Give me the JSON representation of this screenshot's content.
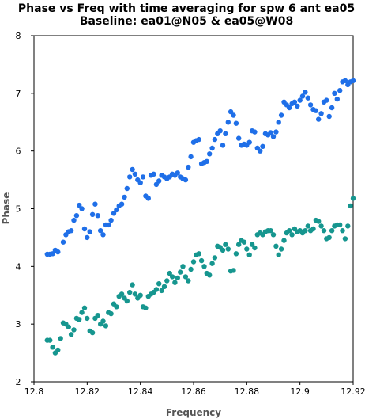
{
  "chart_data": {
    "type": "scatter",
    "title": "Phase vs Freq with time averaging for spw 6 ant ea05",
    "subtitle": "Baseline: ea01@N05 & ea05@W08",
    "xlabel": "Frequency",
    "ylabel": "Phase",
    "xlim": [
      12.8,
      12.92
    ],
    "ylim": [
      2,
      8
    ],
    "x_ticks": [
      "12.8",
      "12.82",
      "12.84",
      "12.86",
      "12.88",
      "12.9",
      "12.92"
    ],
    "y_ticks": [
      "2",
      "3",
      "4",
      "5",
      "6",
      "7",
      "8"
    ],
    "grid": false,
    "legend": "none",
    "series": [
      {
        "color": "#1f6fe8",
        "points": [
          [
            12.805,
            4.21
          ],
          [
            12.806,
            4.21
          ],
          [
            12.807,
            4.22
          ],
          [
            12.808,
            4.28
          ],
          [
            12.809,
            4.25
          ],
          [
            12.811,
            4.42
          ],
          [
            12.812,
            4.55
          ],
          [
            12.813,
            4.6
          ],
          [
            12.814,
            4.62
          ],
          [
            12.815,
            4.8
          ],
          [
            12.816,
            4.88
          ],
          [
            12.817,
            5.06
          ],
          [
            12.818,
            5.0
          ],
          [
            12.819,
            4.65
          ],
          [
            12.82,
            4.5
          ],
          [
            12.821,
            4.6
          ],
          [
            12.822,
            4.9
          ],
          [
            12.823,
            5.08
          ],
          [
            12.824,
            4.88
          ],
          [
            12.825,
            4.62
          ],
          [
            12.826,
            4.55
          ],
          [
            12.827,
            4.72
          ],
          [
            12.828,
            4.72
          ],
          [
            12.829,
            4.8
          ],
          [
            12.83,
            4.92
          ],
          [
            12.831,
            4.98
          ],
          [
            12.832,
            5.05
          ],
          [
            12.833,
            5.08
          ],
          [
            12.834,
            5.2
          ],
          [
            12.835,
            5.35
          ],
          [
            12.836,
            5.55
          ],
          [
            12.837,
            5.68
          ],
          [
            12.838,
            5.6
          ],
          [
            12.839,
            5.5
          ],
          [
            12.84,
            5.45
          ],
          [
            12.841,
            5.55
          ],
          [
            12.842,
            5.22
          ],
          [
            12.843,
            5.18
          ],
          [
            12.844,
            5.58
          ],
          [
            12.845,
            5.6
          ],
          [
            12.846,
            5.42
          ],
          [
            12.847,
            5.48
          ],
          [
            12.848,
            5.58
          ],
          [
            12.849,
            5.55
          ],
          [
            12.85,
            5.52
          ],
          [
            12.851,
            5.55
          ],
          [
            12.852,
            5.6
          ],
          [
            12.853,
            5.58
          ],
          [
            12.854,
            5.62
          ],
          [
            12.855,
            5.55
          ],
          [
            12.856,
            5.52
          ],
          [
            12.857,
            5.5
          ],
          [
            12.858,
            5.72
          ],
          [
            12.859,
            5.9
          ],
          [
            12.86,
            6.15
          ],
          [
            12.861,
            6.18
          ],
          [
            12.862,
            6.2
          ],
          [
            12.863,
            5.78
          ],
          [
            12.864,
            5.8
          ],
          [
            12.865,
            5.82
          ],
          [
            12.866,
            5.95
          ],
          [
            12.867,
            6.05
          ],
          [
            12.868,
            6.2
          ],
          [
            12.869,
            6.3
          ],
          [
            12.87,
            6.35
          ],
          [
            12.871,
            6.1
          ],
          [
            12.872,
            6.3
          ],
          [
            12.873,
            6.5
          ],
          [
            12.874,
            6.68
          ],
          [
            12.875,
            6.62
          ],
          [
            12.876,
            6.48
          ],
          [
            12.877,
            6.22
          ],
          [
            12.878,
            6.1
          ],
          [
            12.879,
            6.12
          ],
          [
            12.88,
            6.1
          ],
          [
            12.881,
            6.15
          ],
          [
            12.882,
            6.35
          ],
          [
            12.883,
            6.33
          ],
          [
            12.884,
            6.05
          ],
          [
            12.885,
            6.0
          ],
          [
            12.886,
            6.08
          ],
          [
            12.887,
            6.3
          ],
          [
            12.888,
            6.28
          ],
          [
            12.889,
            6.32
          ],
          [
            12.89,
            6.25
          ],
          [
            12.891,
            6.33
          ],
          [
            12.892,
            6.5
          ],
          [
            12.893,
            6.62
          ],
          [
            12.894,
            6.85
          ],
          [
            12.895,
            6.8
          ],
          [
            12.896,
            6.75
          ],
          [
            12.897,
            6.82
          ],
          [
            12.898,
            6.85
          ],
          [
            12.899,
            6.78
          ],
          [
            12.9,
            6.88
          ],
          [
            12.901,
            6.95
          ],
          [
            12.902,
            7.02
          ],
          [
            12.903,
            6.92
          ],
          [
            12.904,
            6.8
          ],
          [
            12.905,
            6.72
          ],
          [
            12.906,
            6.7
          ],
          [
            12.907,
            6.55
          ],
          [
            12.908,
            6.65
          ],
          [
            12.909,
            6.85
          ],
          [
            12.91,
            6.88
          ],
          [
            12.911,
            6.6
          ],
          [
            12.912,
            6.75
          ],
          [
            12.913,
            7.0
          ],
          [
            12.914,
            6.9
          ],
          [
            12.915,
            7.05
          ],
          [
            12.916,
            7.2
          ],
          [
            12.917,
            7.22
          ],
          [
            12.918,
            7.15
          ],
          [
            12.919,
            7.2
          ],
          [
            12.92,
            7.22
          ]
        ]
      },
      {
        "color": "#16968f",
        "points": [
          [
            12.805,
            2.72
          ],
          [
            12.806,
            2.72
          ],
          [
            12.807,
            2.6
          ],
          [
            12.808,
            2.5
          ],
          [
            12.809,
            2.55
          ],
          [
            12.81,
            2.75
          ],
          [
            12.811,
            3.02
          ],
          [
            12.812,
            3.0
          ],
          [
            12.813,
            2.95
          ],
          [
            12.814,
            2.82
          ],
          [
            12.815,
            2.9
          ],
          [
            12.816,
            3.1
          ],
          [
            12.817,
            3.08
          ],
          [
            12.818,
            3.2
          ],
          [
            12.819,
            3.28
          ],
          [
            12.82,
            3.1
          ],
          [
            12.821,
            2.88
          ],
          [
            12.822,
            2.85
          ],
          [
            12.823,
            3.1
          ],
          [
            12.824,
            3.15
          ],
          [
            12.825,
            3.0
          ],
          [
            12.826,
            3.05
          ],
          [
            12.827,
            2.97
          ],
          [
            12.828,
            3.2
          ],
          [
            12.829,
            3.18
          ],
          [
            12.83,
            3.35
          ],
          [
            12.831,
            3.3
          ],
          [
            12.832,
            3.48
          ],
          [
            12.833,
            3.52
          ],
          [
            12.834,
            3.45
          ],
          [
            12.835,
            3.4
          ],
          [
            12.836,
            3.55
          ],
          [
            12.837,
            3.68
          ],
          [
            12.838,
            3.52
          ],
          [
            12.839,
            3.45
          ],
          [
            12.84,
            3.5
          ],
          [
            12.841,
            3.3
          ],
          [
            12.842,
            3.28
          ],
          [
            12.843,
            3.48
          ],
          [
            12.844,
            3.52
          ],
          [
            12.845,
            3.55
          ],
          [
            12.846,
            3.6
          ],
          [
            12.847,
            3.7
          ],
          [
            12.848,
            3.58
          ],
          [
            12.849,
            3.65
          ],
          [
            12.85,
            3.75
          ],
          [
            12.851,
            3.88
          ],
          [
            12.852,
            3.82
          ],
          [
            12.853,
            3.72
          ],
          [
            12.854,
            3.8
          ],
          [
            12.855,
            3.9
          ],
          [
            12.856,
            4.0
          ],
          [
            12.857,
            3.82
          ],
          [
            12.858,
            3.75
          ],
          [
            12.859,
            3.95
          ],
          [
            12.86,
            4.08
          ],
          [
            12.861,
            4.2
          ],
          [
            12.862,
            4.22
          ],
          [
            12.863,
            4.1
          ],
          [
            12.864,
            4.0
          ],
          [
            12.865,
            3.88
          ],
          [
            12.866,
            3.85
          ],
          [
            12.867,
            4.05
          ],
          [
            12.868,
            4.15
          ],
          [
            12.869,
            4.35
          ],
          [
            12.87,
            4.33
          ],
          [
            12.871,
            4.28
          ],
          [
            12.872,
            4.38
          ],
          [
            12.873,
            4.3
          ],
          [
            12.874,
            3.92
          ],
          [
            12.875,
            3.93
          ],
          [
            12.876,
            4.22
          ],
          [
            12.877,
            4.38
          ],
          [
            12.878,
            4.45
          ],
          [
            12.879,
            4.42
          ],
          [
            12.88,
            4.3
          ],
          [
            12.881,
            4.2
          ],
          [
            12.882,
            4.38
          ],
          [
            12.883,
            4.32
          ],
          [
            12.884,
            4.55
          ],
          [
            12.885,
            4.58
          ],
          [
            12.886,
            4.55
          ],
          [
            12.887,
            4.6
          ],
          [
            12.888,
            4.62
          ],
          [
            12.889,
            4.62
          ],
          [
            12.89,
            4.55
          ],
          [
            12.891,
            4.35
          ],
          [
            12.892,
            4.2
          ],
          [
            12.893,
            4.3
          ],
          [
            12.894,
            4.45
          ],
          [
            12.895,
            4.58
          ],
          [
            12.896,
            4.62
          ],
          [
            12.897,
            4.55
          ],
          [
            12.898,
            4.65
          ],
          [
            12.899,
            4.6
          ],
          [
            12.9,
            4.62
          ],
          [
            12.901,
            4.58
          ],
          [
            12.902,
            4.62
          ],
          [
            12.903,
            4.7
          ],
          [
            12.904,
            4.62
          ],
          [
            12.905,
            4.65
          ],
          [
            12.906,
            4.8
          ],
          [
            12.907,
            4.78
          ],
          [
            12.908,
            4.7
          ],
          [
            12.909,
            4.62
          ],
          [
            12.91,
            4.48
          ],
          [
            12.911,
            4.5
          ],
          [
            12.912,
            4.62
          ],
          [
            12.913,
            4.7
          ],
          [
            12.914,
            4.72
          ],
          [
            12.915,
            4.72
          ],
          [
            12.916,
            4.62
          ],
          [
            12.917,
            4.48
          ],
          [
            12.918,
            4.7
          ],
          [
            12.919,
            5.05
          ],
          [
            12.92,
            5.18
          ]
        ]
      }
    ]
  }
}
